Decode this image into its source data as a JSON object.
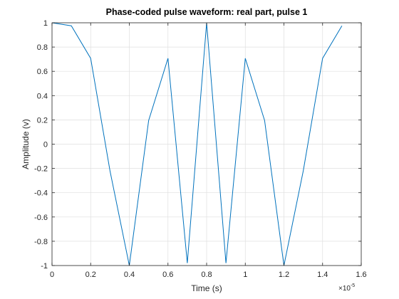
{
  "chart_data": {
    "type": "line",
    "title": "Phase-coded pulse waveform: real part, pulse 1",
    "xlabel": "Time (s)",
    "ylabel": "Amplitude (v)",
    "x_exponent_base": "×10",
    "x_exponent_power": "-5",
    "xlim": [
      0,
      1.6
    ],
    "ylim": [
      -1,
      1
    ],
    "x_scale_factor": 1e-05,
    "grid": true,
    "x_ticks": [
      0,
      0.2,
      0.4,
      0.6,
      0.8,
      1,
      1.2,
      1.4,
      1.6
    ],
    "x_tick_labels": [
      "0",
      "0.2",
      "0.4",
      "0.6",
      "0.8",
      "1",
      "1.2",
      "1.4",
      "1.6"
    ],
    "y_ticks": [
      1,
      0.8,
      0.6,
      0.4,
      0.2,
      0,
      -0.2,
      -0.4,
      -0.6,
      -0.8,
      -1
    ],
    "y_tick_labels": [
      "1",
      "0.8",
      "0.6",
      "0.4",
      "0.2",
      "0",
      "-0.2",
      "-0.4",
      "-0.6",
      "-0.8",
      "-1"
    ],
    "series": [
      {
        "color": "#0072BD",
        "x": [
          0,
          0.1,
          0.2,
          0.3,
          0.4,
          0.5,
          0.6,
          0.7,
          0.8,
          0.9,
          1.0,
          1.1,
          1.2,
          1.3,
          1.4,
          1.5
        ],
        "y": [
          1,
          0.975,
          0.707,
          -0.22,
          -1,
          0.195,
          0.707,
          -0.98,
          1,
          -0.98,
          0.707,
          0.195,
          -1,
          -0.22,
          0.707,
          0.975
        ]
      }
    ]
  }
}
